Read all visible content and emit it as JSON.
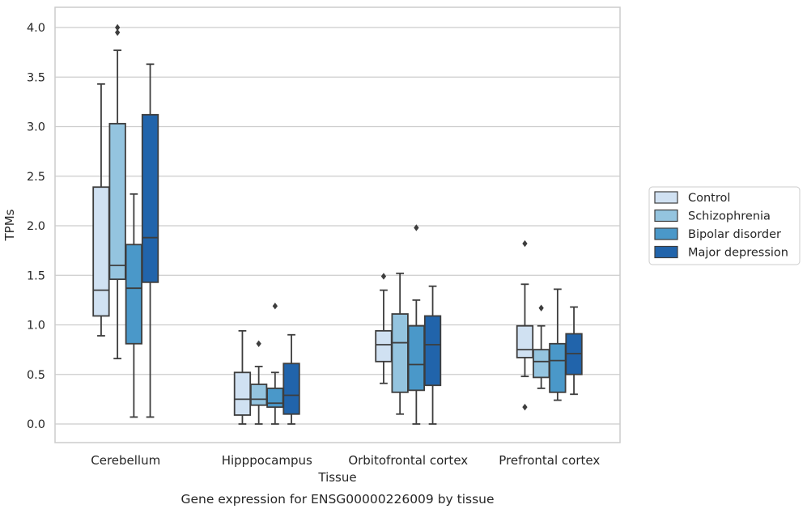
{
  "chart_data": {
    "type": "box",
    "xlabel": "Tissue",
    "ylabel": "TPMs",
    "caption": "Gene expression for ENSG00000226009 by tissue",
    "ylim": [
      -0.2,
      4.2
    ],
    "yticks": [
      "0.0",
      "0.5",
      "1.0",
      "1.5",
      "2.0",
      "2.5",
      "3.0",
      "3.5",
      "4.0"
    ],
    "grid": "horizontal",
    "legend_position": "right",
    "categories": [
      "Cerebellum",
      "Hipppocampus",
      "Orbitofrontal cortex",
      "Prefrontal cortex"
    ],
    "series": [
      {
        "name": "Control",
        "color": "#d0e1f2",
        "boxes": [
          {
            "whislo": 0.89,
            "q1": 1.09,
            "med": 1.35,
            "q3": 2.39,
            "whishi": 3.43,
            "fliers": []
          },
          {
            "whislo": 0.0,
            "q1": 0.09,
            "med": 0.25,
            "q3": 0.52,
            "whishi": 0.94,
            "fliers": []
          },
          {
            "whislo": 0.41,
            "q1": 0.63,
            "med": 0.8,
            "q3": 0.94,
            "whishi": 1.35,
            "fliers": [
              1.49
            ]
          },
          {
            "whislo": 0.48,
            "q1": 0.67,
            "med": 0.75,
            "q3": 0.99,
            "whishi": 1.41,
            "fliers": [
              1.82,
              0.17
            ]
          }
        ]
      },
      {
        "name": "Schizophrenia",
        "color": "#94c4df",
        "boxes": [
          {
            "whislo": 0.66,
            "q1": 1.46,
            "med": 1.6,
            "q3": 3.03,
            "whishi": 3.77,
            "fliers": [
              3.95,
              4.0
            ]
          },
          {
            "whislo": 0.0,
            "q1": 0.19,
            "med": 0.25,
            "q3": 0.4,
            "whishi": 0.58,
            "fliers": [
              0.81
            ]
          },
          {
            "whislo": 0.1,
            "q1": 0.32,
            "med": 0.82,
            "q3": 1.11,
            "whishi": 1.52,
            "fliers": []
          },
          {
            "whislo": 0.36,
            "q1": 0.47,
            "med": 0.63,
            "q3": 0.75,
            "whishi": 0.99,
            "fliers": [
              1.17
            ]
          }
        ]
      },
      {
        "name": "Bipolar disorder",
        "color": "#4a98c9",
        "boxes": [
          {
            "whislo": 0.07,
            "q1": 0.81,
            "med": 1.37,
            "q3": 1.81,
            "whishi": 2.32,
            "fliers": []
          },
          {
            "whislo": 0.0,
            "q1": 0.17,
            "med": 0.21,
            "q3": 0.36,
            "whishi": 0.52,
            "fliers": [
              1.19
            ]
          },
          {
            "whislo": 0.0,
            "q1": 0.34,
            "med": 0.6,
            "q3": 0.99,
            "whishi": 1.25,
            "fliers": [
              1.98
            ]
          },
          {
            "whislo": 0.24,
            "q1": 0.32,
            "med": 0.64,
            "q3": 0.81,
            "whishi": 1.36,
            "fliers": []
          }
        ]
      },
      {
        "name": "Major depression",
        "color": "#2164ab",
        "boxes": [
          {
            "whislo": 0.07,
            "q1": 1.43,
            "med": 1.88,
            "q3": 3.12,
            "whishi": 3.63,
            "fliers": []
          },
          {
            "whislo": 0.0,
            "q1": 0.1,
            "med": 0.29,
            "q3": 0.61,
            "whishi": 0.9,
            "fliers": []
          },
          {
            "whislo": 0.0,
            "q1": 0.39,
            "med": 0.8,
            "q3": 1.09,
            "whishi": 1.39,
            "fliers": []
          },
          {
            "whislo": 0.3,
            "q1": 0.5,
            "med": 0.71,
            "q3": 0.91,
            "whishi": 1.18,
            "fliers": []
          }
        ]
      }
    ]
  }
}
